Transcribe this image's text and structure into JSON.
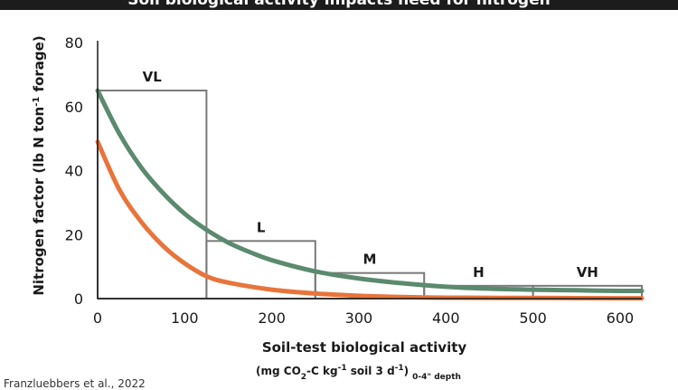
{
  "header": {
    "title": "Soil biological activity impacts need for nitrogen"
  },
  "credit": "Franzluebbers et al., 2022",
  "chart_data": {
    "type": "line",
    "title": "Soil biological activity impacts need for nitrogen",
    "ylabel": "Nitrogen factor (lb N ton",
    "ylabel_sup": "-1",
    "ylabel_end": " forage)",
    "xlabel": "Soil-test biological activity",
    "xlabel_sub": {
      "open": "(mg CO",
      "sub1": "2",
      "mid": "-C kg",
      "sup1": "-1",
      "rest": " soil 3 d",
      "sup2": "-1",
      "close": ")",
      "depth": "0-4\" depth"
    },
    "xlim": [
      0,
      625
    ],
    "ylim": [
      0,
      80
    ],
    "x_ticks": [
      0,
      100,
      200,
      300,
      400,
      500,
      600
    ],
    "y_ticks": [
      0,
      20,
      40,
      60,
      80
    ],
    "grid": false,
    "categories": [
      {
        "label": "VL",
        "x0": 0,
        "x1": 125,
        "y": 65
      },
      {
        "label": "L",
        "x0": 125,
        "x1": 250,
        "y": 18
      },
      {
        "label": "M",
        "x0": 250,
        "x1": 375,
        "y": 8
      },
      {
        "label": "H",
        "x0": 375,
        "x1": 500,
        "y": 4
      },
      {
        "label": "VH",
        "x0": 500,
        "x1": 625,
        "y": 4
      }
    ],
    "series": [
      {
        "color": "#5b8a6e",
        "x": [
          0,
          25,
          50,
          75,
          100,
          125,
          150,
          175,
          200,
          250,
          300,
          350,
          400,
          450,
          500,
          550,
          600,
          625
        ],
        "y": [
          65,
          51.5,
          41,
          33,
          26.5,
          21.5,
          17.5,
          14.5,
          12,
          8.5,
          6.3,
          4.8,
          3.7,
          3.1,
          2.8,
          2.6,
          2.4,
          2.4
        ]
      },
      {
        "color": "#e8743b",
        "x": [
          0,
          25,
          50,
          75,
          100,
          125,
          150,
          200,
          250,
          300,
          350,
          400,
          500,
          600,
          625
        ],
        "y": [
          49,
          34,
          24,
          16.5,
          11,
          7,
          5,
          2.8,
          1.6,
          0.9,
          0.5,
          0.3,
          0.2,
          0.1,
          0.1
        ]
      }
    ]
  }
}
